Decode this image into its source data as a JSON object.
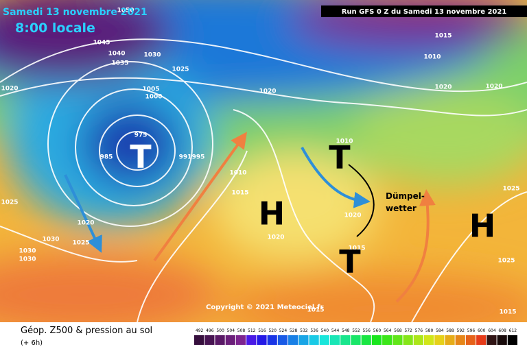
{
  "header": {
    "date": "Samedi 13 novembre 2021",
    "time": "8:00 locale",
    "run": "Run GFS 0 Z du Samedi 13 novembre 2021"
  },
  "isobar_labels": [
    "1050",
    "1045",
    "1040",
    "1035",
    "1030",
    "1025",
    "1020",
    "1005",
    "1000",
    "975",
    "985",
    "991",
    "995",
    "1010",
    "1015",
    "1020",
    "1015",
    "1010",
    "1020",
    "1020",
    "1010",
    "1020",
    "1015",
    "1020",
    "1025",
    "1025",
    "1020",
    "1025",
    "1030",
    "1030",
    "1030",
    "1025",
    "1015",
    "1015"
  ],
  "pressure_centers": [
    "T",
    "H",
    "T",
    "T",
    "H"
  ],
  "annotation": "Dümpel-wetter",
  "copyright": "Copyright © 2021 Meteociel.fr",
  "footer": {
    "title": "Géop. Z500 & pression au sol",
    "lead": "(+ 6h)"
  },
  "scale": {
    "labels": [
      492,
      496,
      500,
      504,
      508,
      512,
      516,
      520,
      524,
      528,
      532,
      536,
      540,
      544,
      548,
      552,
      556,
      560,
      564,
      568,
      572,
      576,
      580,
      584,
      588,
      592,
      596,
      600,
      604,
      608,
      612
    ]
  }
}
